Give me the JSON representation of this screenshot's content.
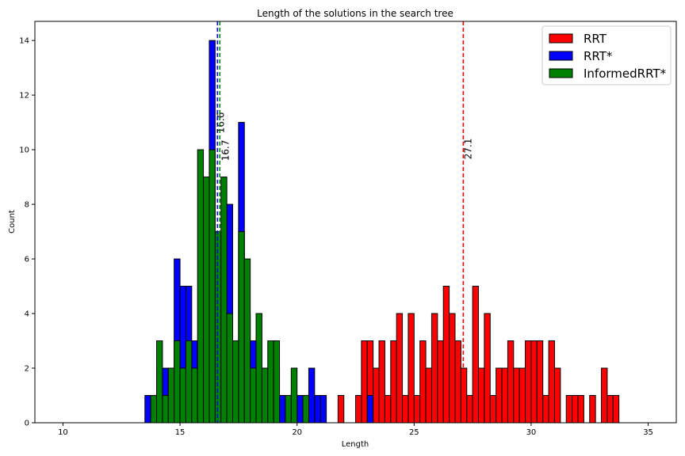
{
  "chart_data": {
    "type": "bar",
    "title": "Length of the solutions in the search tree",
    "xlabel": "Length",
    "ylabel": "Count",
    "xlim": [
      8.8,
      36.2
    ],
    "ylim": [
      0,
      14.7
    ],
    "xticks": [
      10,
      15,
      20,
      25,
      30,
      35
    ],
    "yticks": [
      0,
      2,
      4,
      6,
      8,
      10,
      12,
      14
    ],
    "bin_width": 0.25,
    "legend_position": "top-right",
    "series": [
      {
        "name": "RRT",
        "color": "#ff0000",
        "bins": [
          {
            "x": 21.75,
            "count": 1
          },
          {
            "x": 22.5,
            "count": 1
          },
          {
            "x": 22.75,
            "count": 3
          },
          {
            "x": 23.0,
            "count": 3
          },
          {
            "x": 23.25,
            "count": 2
          },
          {
            "x": 23.5,
            "count": 3
          },
          {
            "x": 23.75,
            "count": 1
          },
          {
            "x": 24.0,
            "count": 3
          },
          {
            "x": 24.25,
            "count": 4
          },
          {
            "x": 24.5,
            "count": 1
          },
          {
            "x": 24.75,
            "count": 4
          },
          {
            "x": 25.0,
            "count": 1
          },
          {
            "x": 25.25,
            "count": 3
          },
          {
            "x": 25.5,
            "count": 2
          },
          {
            "x": 25.75,
            "count": 4
          },
          {
            "x": 26.0,
            "count": 3
          },
          {
            "x": 26.25,
            "count": 5
          },
          {
            "x": 26.5,
            "count": 4
          },
          {
            "x": 26.75,
            "count": 3
          },
          {
            "x": 27.0,
            "count": 2
          },
          {
            "x": 27.25,
            "count": 1
          },
          {
            "x": 27.5,
            "count": 5
          },
          {
            "x": 27.75,
            "count": 2
          },
          {
            "x": 28.0,
            "count": 4
          },
          {
            "x": 28.25,
            "count": 1
          },
          {
            "x": 28.5,
            "count": 2
          },
          {
            "x": 28.75,
            "count": 2
          },
          {
            "x": 29.0,
            "count": 3
          },
          {
            "x": 29.25,
            "count": 2
          },
          {
            "x": 29.5,
            "count": 2
          },
          {
            "x": 29.75,
            "count": 3
          },
          {
            "x": 30.0,
            "count": 3
          },
          {
            "x": 30.25,
            "count": 3
          },
          {
            "x": 30.5,
            "count": 1
          },
          {
            "x": 30.75,
            "count": 3
          },
          {
            "x": 31.0,
            "count": 2
          },
          {
            "x": 31.5,
            "count": 1
          },
          {
            "x": 31.75,
            "count": 1
          },
          {
            "x": 32.0,
            "count": 1
          },
          {
            "x": 32.5,
            "count": 1
          },
          {
            "x": 33.0,
            "count": 2
          },
          {
            "x": 33.25,
            "count": 1
          },
          {
            "x": 33.5,
            "count": 1
          }
        ]
      },
      {
        "name": "RRT*",
        "color": "#0000ff",
        "bins": [
          {
            "x": 13.5,
            "count": 1
          },
          {
            "x": 13.75,
            "count": 1
          },
          {
            "x": 14.0,
            "count": 2
          },
          {
            "x": 14.25,
            "count": 2
          },
          {
            "x": 14.5,
            "count": 2
          },
          {
            "x": 14.75,
            "count": 6
          },
          {
            "x": 15.0,
            "count": 5
          },
          {
            "x": 15.25,
            "count": 5
          },
          {
            "x": 15.5,
            "count": 3
          },
          {
            "x": 15.75,
            "count": 3
          },
          {
            "x": 16.0,
            "count": 7
          },
          {
            "x": 16.25,
            "count": 14
          },
          {
            "x": 16.5,
            "count": 5
          },
          {
            "x": 16.75,
            "count": 5
          },
          {
            "x": 17.0,
            "count": 8
          },
          {
            "x": 17.25,
            "count": 3
          },
          {
            "x": 17.5,
            "count": 11
          },
          {
            "x": 17.75,
            "count": 4
          },
          {
            "x": 18.0,
            "count": 3
          },
          {
            "x": 18.25,
            "count": 2
          },
          {
            "x": 18.5,
            "count": 2
          },
          {
            "x": 18.75,
            "count": 2
          },
          {
            "x": 19.0,
            "count": 2
          },
          {
            "x": 19.25,
            "count": 1
          },
          {
            "x": 19.5,
            "count": 1
          },
          {
            "x": 19.75,
            "count": 1
          },
          {
            "x": 20.0,
            "count": 1
          },
          {
            "x": 20.25,
            "count": 1
          },
          {
            "x": 20.5,
            "count": 2
          },
          {
            "x": 20.75,
            "count": 1
          },
          {
            "x": 21.0,
            "count": 1
          },
          {
            "x": 23.0,
            "count": 1
          }
        ]
      },
      {
        "name": "InformedRRT*",
        "color": "#008000",
        "bins": [
          {
            "x": 13.75,
            "count": 1
          },
          {
            "x": 14.0,
            "count": 3
          },
          {
            "x": 14.25,
            "count": 1
          },
          {
            "x": 14.5,
            "count": 2
          },
          {
            "x": 14.75,
            "count": 3
          },
          {
            "x": 15.0,
            "count": 2
          },
          {
            "x": 15.25,
            "count": 3
          },
          {
            "x": 15.5,
            "count": 2
          },
          {
            "x": 15.75,
            "count": 10
          },
          {
            "x": 16.0,
            "count": 9
          },
          {
            "x": 16.25,
            "count": 10
          },
          {
            "x": 16.5,
            "count": 7
          },
          {
            "x": 16.75,
            "count": 9
          },
          {
            "x": 17.0,
            "count": 4
          },
          {
            "x": 17.25,
            "count": 3
          },
          {
            "x": 17.5,
            "count": 7
          },
          {
            "x": 17.75,
            "count": 6
          },
          {
            "x": 18.0,
            "count": 2
          },
          {
            "x": 18.25,
            "count": 4
          },
          {
            "x": 18.5,
            "count": 2
          },
          {
            "x": 18.75,
            "count": 3
          },
          {
            "x": 19.0,
            "count": 3
          },
          {
            "x": 19.5,
            "count": 1
          },
          {
            "x": 19.75,
            "count": 2
          },
          {
            "x": 20.25,
            "count": 1
          }
        ]
      }
    ],
    "mean_lines": [
      {
        "value": 27.1,
        "label": "27.1",
        "color": "#ff0000"
      },
      {
        "value": 16.6,
        "label": "16.6",
        "color": "#0000ff"
      },
      {
        "value": 16.7,
        "label": "16.7",
        "color": "#008000"
      }
    ]
  }
}
